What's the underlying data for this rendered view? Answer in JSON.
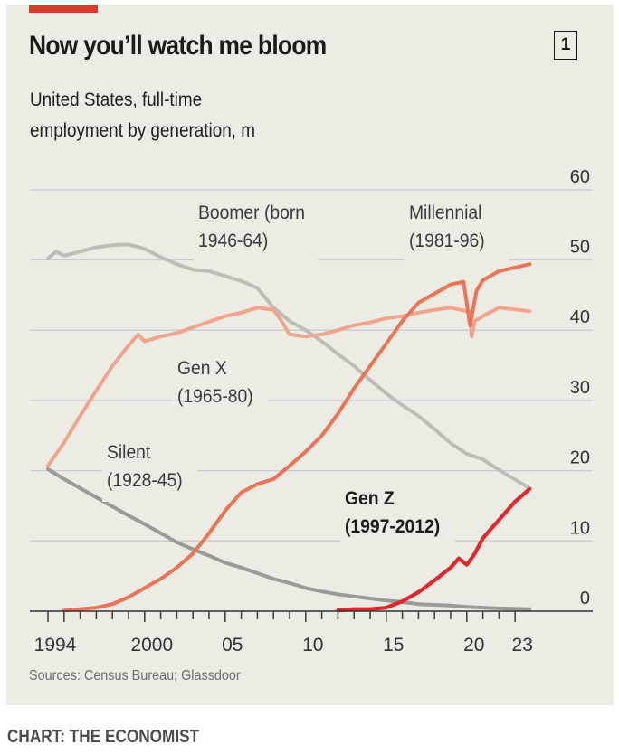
{
  "header": {
    "title": "Now you’ll watch me bloom",
    "chart_number": "1",
    "subtitle_line1": "United States, full-time",
    "subtitle_line2": "employment by generation, m"
  },
  "footer": {
    "source": "Sources: Census Bureau; Glassdoor",
    "credit": "CHART: THE ECONOMIST"
  },
  "colors": {
    "accent_red": "#e3342f",
    "background": "#ecebe4",
    "boomer": "#bdbcb6",
    "silent": "#9a9a96",
    "genx": "#f1a48c",
    "millennial": "#ec7356",
    "genz": "#e3262a",
    "grid": "#c7cbd1",
    "axis": "#333333"
  },
  "chart_data": {
    "type": "line",
    "title": "Now you’ll watch me bloom",
    "subtitle": "United States, full-time employment by generation, m",
    "xlabel": "",
    "ylabel": "Full-time employment, m",
    "xlim": [
      1994,
      2024
    ],
    "ylim": [
      0,
      60
    ],
    "y_ticks": [
      0,
      10,
      20,
      30,
      40,
      50,
      60
    ],
    "y_tick_labels": [
      "0",
      "10",
      "20",
      "30",
      "40",
      "50",
      "60"
    ],
    "y_axis_side": "right",
    "x_tick_labels": [
      {
        "year": 1994,
        "label": "1994"
      },
      {
        "year": 2000,
        "label": "2000"
      },
      {
        "year": 2005,
        "label": "05"
      },
      {
        "year": 2010,
        "label": "10"
      },
      {
        "year": 2015,
        "label": "15"
      },
      {
        "year": 2020,
        "label": "20"
      },
      {
        "year": 2023,
        "label": "23"
      }
    ],
    "grid": true,
    "legend": "direct-labels",
    "series": [
      {
        "key": "boomer",
        "name": "Boomer (born 1946-64)",
        "label_lines": [
          "Boomer (born",
          "1946-64)"
        ],
        "x": [
          1994,
          1994.5,
          1995,
          1996,
          1997,
          1998,
          1999,
          2000,
          2001,
          2002,
          2003,
          2004,
          2005,
          2006,
          2007,
          2008,
          2009,
          2010,
          2011,
          2012,
          2013,
          2014,
          2015,
          2016,
          2017,
          2018,
          2019,
          2020,
          2021,
          2022,
          2023.9
        ],
        "values": [
          50.2,
          51.2,
          50.6,
          51.2,
          51.8,
          52.1,
          52.2,
          51.6,
          50.4,
          49.4,
          48.6,
          48.4,
          47.7,
          47.0,
          46.0,
          43.2,
          41.3,
          40.0,
          38.4,
          36.6,
          34.9,
          32.9,
          31.0,
          29.3,
          27.8,
          25.9,
          23.9,
          22.4,
          21.6,
          20.1,
          17.5
        ]
      },
      {
        "key": "silent",
        "name": "Silent (1928-45)",
        "label_lines": [
          "Silent",
          "(1928-45)"
        ],
        "x": [
          1994,
          1995,
          1996,
          1997,
          1998,
          1999,
          2000,
          2001,
          2002,
          2003,
          2004,
          2005,
          2006,
          2007,
          2008,
          2009,
          2010,
          2011,
          2012,
          2013,
          2014,
          2015,
          2016,
          2017,
          2018,
          2019,
          2020,
          2021,
          2022,
          2023.9
        ],
        "values": [
          20.2,
          18.8,
          17.5,
          16.2,
          14.9,
          13.6,
          12.4,
          11.1,
          9.8,
          8.8,
          7.9,
          6.9,
          6.2,
          5.4,
          4.6,
          4.0,
          3.3,
          2.8,
          2.4,
          2.1,
          1.8,
          1.5,
          1.3,
          1.0,
          0.9,
          0.8,
          0.6,
          0.5,
          0.4,
          0.3
        ]
      },
      {
        "key": "genx",
        "name": "Gen X (1965-80)",
        "label_lines": [
          "Gen X",
          "(1965-80)"
        ],
        "x": [
          1994,
          1995,
          1996,
          1997,
          1998,
          1999,
          1999.6,
          2000,
          2001,
          2002,
          2003,
          2004,
          2005,
          2006,
          2007,
          2008,
          2008.5,
          2009,
          2010,
          2011,
          2012,
          2013,
          2014,
          2015,
          2016,
          2017,
          2018,
          2019,
          2020.2,
          2020.3,
          2020.5,
          2021,
          2022,
          2023.9
        ],
        "values": [
          20.7,
          24.0,
          27.8,
          31.4,
          34.9,
          37.8,
          39.4,
          38.4,
          39.1,
          39.6,
          40.4,
          41.2,
          42.0,
          42.5,
          43.2,
          42.9,
          41.3,
          39.4,
          39.1,
          39.4,
          40.0,
          40.7,
          41.1,
          41.7,
          42.0,
          42.5,
          42.9,
          43.2,
          42.6,
          39.1,
          41.3,
          42.0,
          43.2,
          42.7
        ]
      },
      {
        "key": "millennial",
        "name": "Millennial (1981-96)",
        "label_lines": [
          "Millennial",
          "(1981-96)"
        ],
        "x": [
          1995,
          1997,
          1998,
          1999,
          2000,
          2001,
          2002,
          2003,
          2004,
          2005,
          2006,
          2007,
          2008,
          2009,
          2010,
          2011,
          2012,
          2013,
          2014,
          2015,
          2016,
          2017,
          2018,
          2019,
          2019.8,
          2020.2,
          2020.6,
          2021,
          2022,
          2023.9
        ],
        "values": [
          0.1,
          0.5,
          1.0,
          2.0,
          3.3,
          4.6,
          6.2,
          8.2,
          11.1,
          14.3,
          16.9,
          18.1,
          18.8,
          20.7,
          22.7,
          25.0,
          28.1,
          31.7,
          34.9,
          38.1,
          41.3,
          43.9,
          45.2,
          46.5,
          46.9,
          40.7,
          45.6,
          47.1,
          48.4,
          49.4
        ]
      },
      {
        "key": "genz",
        "name": "Gen Z (1997-2012)",
        "label_lines": [
          "Gen Z",
          "(1997-2012)"
        ],
        "x": [
          2012,
          2013,
          2014,
          2015,
          2016,
          2017,
          2018,
          2019,
          2019.5,
          2020,
          2020.5,
          2021,
          2022,
          2023,
          2023.9
        ],
        "values": [
          0.1,
          0.3,
          0.3,
          0.5,
          1.4,
          2.7,
          4.4,
          6.2,
          7.5,
          6.6,
          8.2,
          10.4,
          13.0,
          15.6,
          17.4
        ]
      }
    ]
  }
}
